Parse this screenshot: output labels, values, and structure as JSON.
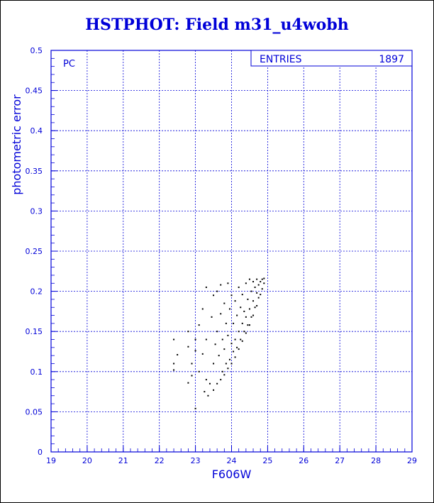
{
  "chart_data": {
    "type": "scatter",
    "title": "HSTPHOT: Field m31_u4wobh",
    "xlabel": "F606W",
    "ylabel": "photometric error",
    "xlim": [
      19,
      29
    ],
    "ylim": [
      0,
      0.5
    ],
    "xticks": [
      "19",
      "20",
      "21",
      "22",
      "23",
      "24",
      "25",
      "26",
      "27",
      "28",
      "29"
    ],
    "yticks": [
      "0",
      "0.05",
      "0.1",
      "0.15",
      "0.2",
      "0.25",
      "0.3",
      "0.35",
      "0.4",
      "0.45",
      "0.5"
    ],
    "grid": true,
    "annotation": "PC",
    "stats_box": {
      "label": "ENTRIES",
      "value": "1897"
    },
    "points": [
      [
        22.4,
        0.14
      ],
      [
        22.4,
        0.11
      ],
      [
        22.4,
        0.102
      ],
      [
        22.5,
        0.121
      ],
      [
        22.8,
        0.15
      ],
      [
        22.8,
        0.131
      ],
      [
        22.8,
        0.086
      ],
      [
        22.9,
        0.095
      ],
      [
        22.9,
        0.11
      ],
      [
        23.0,
        0.054
      ],
      [
        23.0,
        0.126
      ],
      [
        23.0,
        0.14
      ],
      [
        23.1,
        0.1
      ],
      [
        23.1,
        0.158
      ],
      [
        23.2,
        0.122
      ],
      [
        23.2,
        0.178
      ],
      [
        23.25,
        0.075
      ],
      [
        23.3,
        0.09
      ],
      [
        23.3,
        0.14
      ],
      [
        23.3,
        0.205
      ],
      [
        23.35,
        0.07
      ],
      [
        23.4,
        0.085
      ],
      [
        23.45,
        0.168
      ],
      [
        23.5,
        0.077
      ],
      [
        23.5,
        0.11
      ],
      [
        23.5,
        0.195
      ],
      [
        23.55,
        0.134
      ],
      [
        23.6,
        0.085
      ],
      [
        23.6,
        0.15
      ],
      [
        23.6,
        0.2
      ],
      [
        23.65,
        0.12
      ],
      [
        23.7,
        0.09
      ],
      [
        23.7,
        0.172
      ],
      [
        23.7,
        0.208
      ],
      [
        23.75,
        0.1
      ],
      [
        23.75,
        0.14
      ],
      [
        23.8,
        0.096
      ],
      [
        23.8,
        0.128
      ],
      [
        23.8,
        0.185
      ],
      [
        23.85,
        0.11
      ],
      [
        23.85,
        0.16
      ],
      [
        23.9,
        0.104
      ],
      [
        23.9,
        0.145
      ],
      [
        23.9,
        0.21
      ],
      [
        23.95,
        0.115
      ],
      [
        23.95,
        0.178
      ],
      [
        24.0,
        0.11
      ],
      [
        24.0,
        0.135
      ],
      [
        24.0,
        0.195
      ],
      [
        24.05,
        0.125
      ],
      [
        24.05,
        0.16
      ],
      [
        24.1,
        0.118
      ],
      [
        24.1,
        0.14
      ],
      [
        24.1,
        0.188
      ],
      [
        24.15,
        0.13
      ],
      [
        24.15,
        0.17
      ],
      [
        24.2,
        0.128
      ],
      [
        24.2,
        0.15
      ],
      [
        24.2,
        0.205
      ],
      [
        24.25,
        0.14
      ],
      [
        24.25,
        0.18
      ],
      [
        24.3,
        0.138
      ],
      [
        24.3,
        0.16
      ],
      [
        24.3,
        0.196
      ],
      [
        24.35,
        0.15
      ],
      [
        24.35,
        0.175
      ],
      [
        24.4,
        0.148
      ],
      [
        24.4,
        0.168
      ],
      [
        24.4,
        0.21
      ],
      [
        24.45,
        0.158
      ],
      [
        24.45,
        0.19
      ],
      [
        24.5,
        0.158
      ],
      [
        24.5,
        0.178
      ],
      [
        24.5,
        0.215
      ],
      [
        24.55,
        0.168
      ],
      [
        24.55,
        0.2
      ],
      [
        24.6,
        0.17
      ],
      [
        24.6,
        0.188
      ],
      [
        24.6,
        0.212
      ],
      [
        24.65,
        0.18
      ],
      [
        24.65,
        0.205
      ],
      [
        24.7,
        0.182
      ],
      [
        24.7,
        0.198
      ],
      [
        24.7,
        0.215
      ],
      [
        24.75,
        0.192
      ],
      [
        24.75,
        0.208
      ],
      [
        24.8,
        0.196
      ],
      [
        24.8,
        0.212
      ],
      [
        24.85,
        0.203
      ],
      [
        24.85,
        0.215
      ],
      [
        24.9,
        0.21
      ],
      [
        24.9,
        0.216
      ]
    ]
  }
}
